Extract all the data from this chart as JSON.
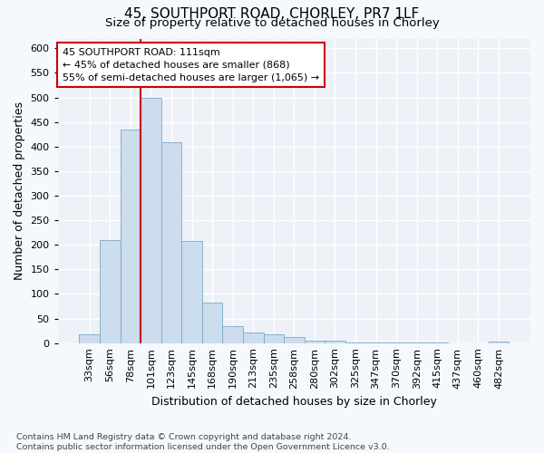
{
  "title_line1": "45, SOUTHPORT ROAD, CHORLEY, PR7 1LF",
  "title_line2": "Size of property relative to detached houses in Chorley",
  "xlabel": "Distribution of detached houses by size in Chorley",
  "ylabel": "Number of detached properties",
  "bar_color": "#ccdded",
  "bar_edge_color": "#7aaac8",
  "categories": [
    "33sqm",
    "56sqm",
    "78sqm",
    "101sqm",
    "123sqm",
    "145sqm",
    "168sqm",
    "190sqm",
    "213sqm",
    "235sqm",
    "258sqm",
    "280sqm",
    "302sqm",
    "325sqm",
    "347sqm",
    "370sqm",
    "392sqm",
    "415sqm",
    "437sqm",
    "460sqm",
    "482sqm"
  ],
  "values": [
    18,
    210,
    435,
    500,
    408,
    207,
    83,
    35,
    22,
    18,
    13,
    5,
    5,
    2,
    1,
    1,
    1,
    1,
    0,
    0,
    4
  ],
  "ylim": [
    0,
    620
  ],
  "yticks": [
    0,
    50,
    100,
    150,
    200,
    250,
    300,
    350,
    400,
    450,
    500,
    550,
    600
  ],
  "vline_x_idx": 3,
  "vline_color": "#cc0000",
  "annotation_text": "45 SOUTHPORT ROAD: 111sqm\n← 45% of detached houses are smaller (868)\n55% of semi-detached houses are larger (1,065) →",
  "annotation_box_facecolor": "#ffffff",
  "annotation_box_edgecolor": "#cc0000",
  "footnote": "Contains HM Land Registry data © Crown copyright and database right 2024.\nContains public sector information licensed under the Open Government Licence v3.0.",
  "fig_facecolor": "#f5f8fc",
  "axes_facecolor": "#eef2f8",
  "grid_color": "#ffffff",
  "title_fontsize": 11,
  "subtitle_fontsize": 9.5,
  "tick_fontsize": 8,
  "ylabel_fontsize": 9,
  "xlabel_fontsize": 9
}
